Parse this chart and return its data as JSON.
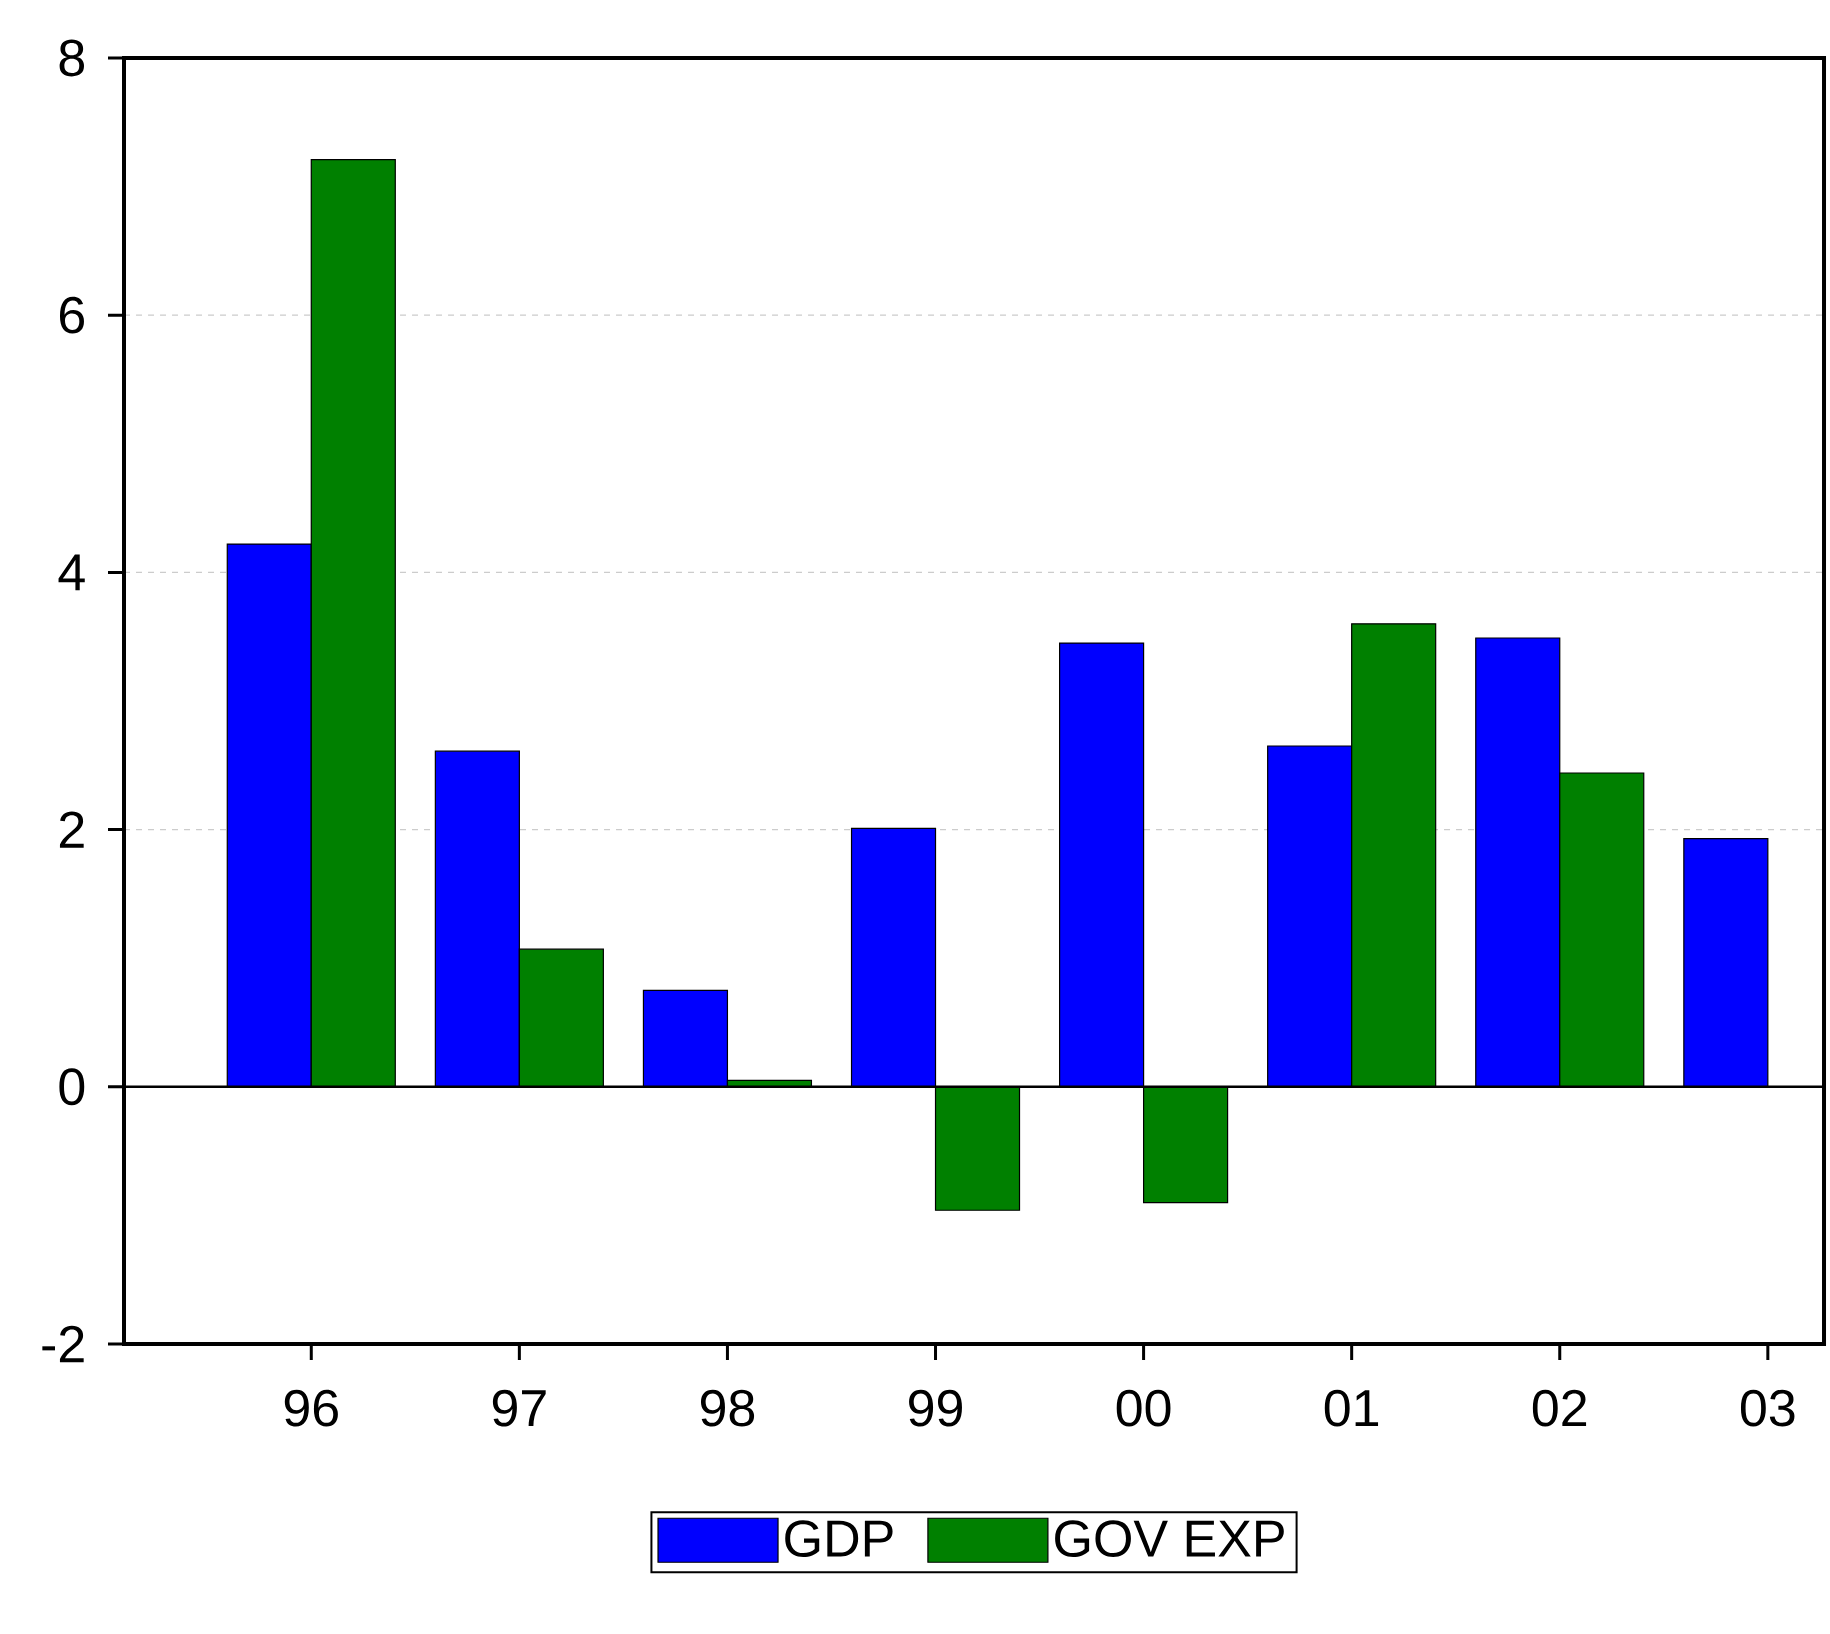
{
  "chart_data": {
    "type": "bar",
    "categories": [
      "96",
      "97",
      "98",
      "99",
      "00",
      "01",
      "02",
      "03"
    ],
    "series": [
      {
        "name": "GDP",
        "color": "#0000ff",
        "values": [
          4.22,
          2.61,
          0.75,
          2.01,
          3.45,
          2.65,
          3.49,
          1.93
        ]
      },
      {
        "name": "GOV EXP",
        "color": "#008000",
        "values": [
          7.21,
          1.07,
          0.05,
          -0.96,
          -0.9,
          3.6,
          2.44,
          null
        ]
      }
    ],
    "ylim": [
      -2,
      8
    ],
    "yticks": [
      -2,
      0,
      2,
      4,
      6,
      8
    ],
    "grid": "y",
    "legend": "bottom",
    "ref_lines": [
      {
        "axis": "y",
        "value": 0,
        "color": "#000000"
      }
    ]
  }
}
